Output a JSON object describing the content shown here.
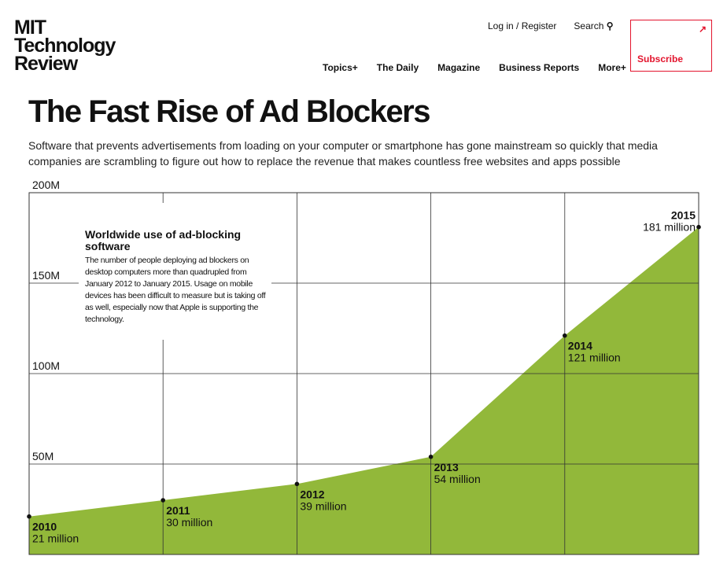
{
  "header": {
    "logo_line1": "MIT",
    "logo_line2": "Technology",
    "logo_line3": "Review",
    "login": "Log in / Register",
    "search": "Search",
    "search_glyph": "⚲",
    "nav": [
      "Topics+",
      "The Daily",
      "Magazine",
      "Business Reports",
      "More+"
    ],
    "subscribe": "Subscribe",
    "subscribe_arrow": "↗"
  },
  "article": {
    "title": "The Fast Rise of Ad Blockers",
    "dek": "Software that prevents advertisements from loading on your computer or smartphone has gone mainstream so quickly that media companies are scrambling to figure out how to replace the revenue that makes countless free websites and apps possible"
  },
  "chart_data": {
    "type": "area",
    "x": [
      2010,
      2011,
      2012,
      2013,
      2014,
      2015
    ],
    "point_labels": [
      "2010",
      "2011",
      "2012",
      "2013",
      "2014",
      "2015"
    ],
    "value_labels": [
      "21 million",
      "30 million",
      "39 million",
      "54 million",
      "121 million",
      "181 million"
    ],
    "values": [
      21,
      30,
      39,
      54,
      121,
      181
    ],
    "ylim": [
      0,
      200
    ],
    "yticks": [
      50,
      100,
      150,
      200
    ],
    "ytick_labels": [
      "50M",
      "100M",
      "150M",
      "200M"
    ],
    "annotation_title": "Worldwide use of ad-blocking software",
    "annotation_text": "The number of people deploying ad blockers on desktop computers more than quadrupled from January 2012 to January 2015. Usage on mobile devices has been difficult to measure but is taking off as well, especially now that Apple is supporting the technology.",
    "fill_color": "#92b83a",
    "grid": true
  }
}
